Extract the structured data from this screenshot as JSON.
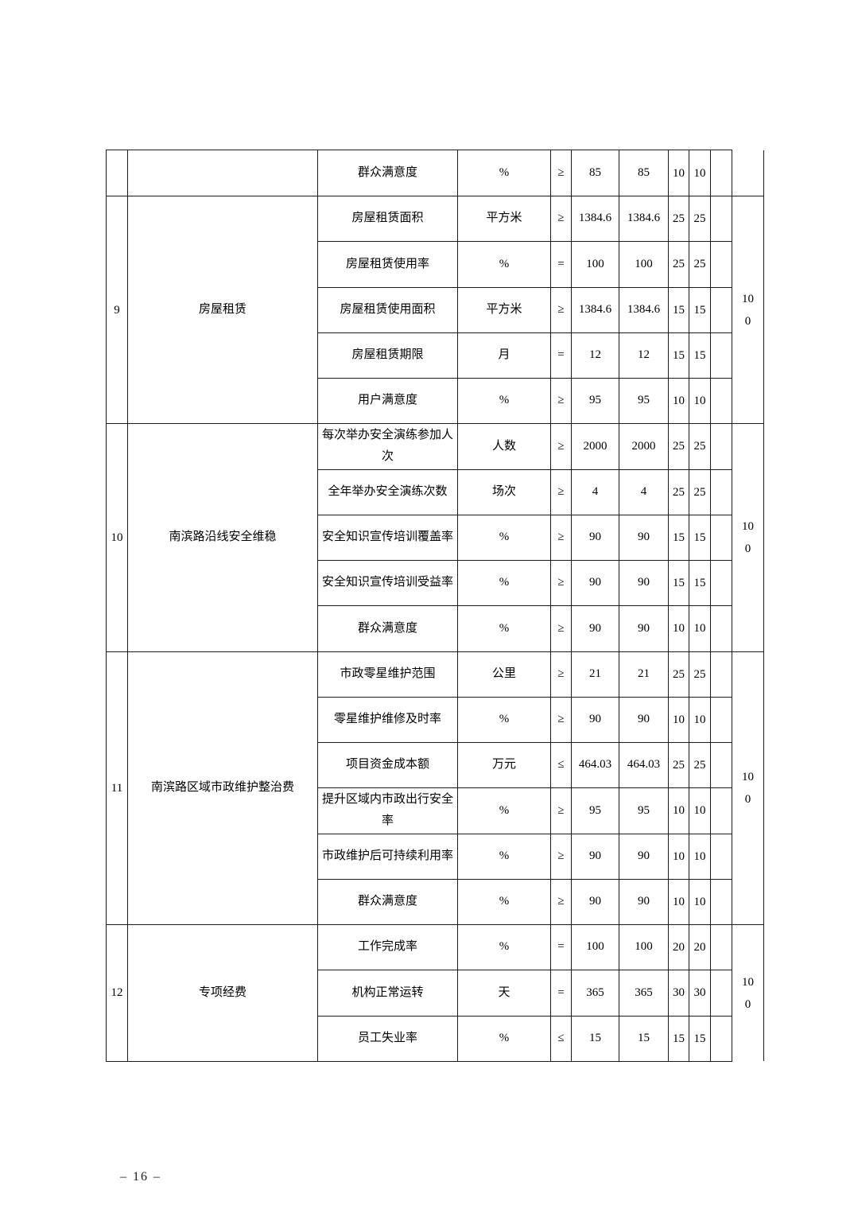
{
  "page": {
    "footer": "– 16 –"
  },
  "table": {
    "continuation_row": {
      "indicator": "群众满意度",
      "unit": "%",
      "comparator": "≥",
      "target": "85",
      "actual": "85",
      "score1": "10",
      "score2": "10",
      "total": ""
    },
    "sections": [
      {
        "no": "9",
        "name": "房屋租赁",
        "total": "100",
        "rows": [
          {
            "indicator": "房屋租赁面积",
            "unit": "平方米",
            "comparator": "≥",
            "target": "1384.6",
            "actual": "1384.6",
            "score1": "25",
            "score2": "25"
          },
          {
            "indicator": "房屋租赁使用率",
            "unit": "%",
            "comparator": "=",
            "target": "100",
            "actual": "100",
            "score1": "25",
            "score2": "25"
          },
          {
            "indicator": "房屋租赁使用面积",
            "unit": "平方米",
            "comparator": "≥",
            "target": "1384.6",
            "actual": "1384.6",
            "score1": "15",
            "score2": "15"
          },
          {
            "indicator": "房屋租赁期限",
            "unit": "月",
            "comparator": "=",
            "target": "12",
            "actual": "12",
            "score1": "15",
            "score2": "15"
          },
          {
            "indicator": "用户满意度",
            "unit": "%",
            "comparator": "≥",
            "target": "95",
            "actual": "95",
            "score1": "10",
            "score2": "10"
          }
        ]
      },
      {
        "no": "10",
        "name": "南滨路沿线安全维稳",
        "total": "100",
        "rows": [
          {
            "indicator": "每次举办安全演练参加人次",
            "unit": "人数",
            "comparator": "≥",
            "target": "2000",
            "actual": "2000",
            "score1": "25",
            "score2": "25"
          },
          {
            "indicator": "全年举办安全演练次数",
            "unit": "场次",
            "comparator": "≥",
            "target": "4",
            "actual": "4",
            "score1": "25",
            "score2": "25"
          },
          {
            "indicator": "安全知识宣传培训覆盖率",
            "unit": "%",
            "comparator": "≥",
            "target": "90",
            "actual": "90",
            "score1": "15",
            "score2": "15"
          },
          {
            "indicator": "安全知识宣传培训受益率",
            "unit": "%",
            "comparator": "≥",
            "target": "90",
            "actual": "90",
            "score1": "15",
            "score2": "15"
          },
          {
            "indicator": "群众满意度",
            "unit": "%",
            "comparator": "≥",
            "target": "90",
            "actual": "90",
            "score1": "10",
            "score2": "10"
          }
        ]
      },
      {
        "no": "11",
        "name": "南滨路区域市政维护整治费",
        "total": "100",
        "rows": [
          {
            "indicator": "市政零星维护范围",
            "unit": "公里",
            "comparator": "≥",
            "target": "21",
            "actual": "21",
            "score1": "25",
            "score2": "25"
          },
          {
            "indicator": "零星维护维修及时率",
            "unit": "%",
            "comparator": "≥",
            "target": "90",
            "actual": "90",
            "score1": "10",
            "score2": "10"
          },
          {
            "indicator": "项目资金成本额",
            "unit": "万元",
            "comparator": "≤",
            "target": "464.03",
            "actual": "464.03",
            "score1": "25",
            "score2": "25"
          },
          {
            "indicator": "提升区域内市政出行安全率",
            "unit": "%",
            "comparator": "≥",
            "target": "95",
            "actual": "95",
            "score1": "10",
            "score2": "10"
          },
          {
            "indicator": "市政维护后可持续利用率",
            "unit": "%",
            "comparator": "≥",
            "target": "90",
            "actual": "90",
            "score1": "10",
            "score2": "10"
          },
          {
            "indicator": "群众满意度",
            "unit": "%",
            "comparator": "≥",
            "target": "90",
            "actual": "90",
            "score1": "10",
            "score2": "10"
          }
        ]
      },
      {
        "no": "12",
        "name": "专项经费",
        "total": "100",
        "rows": [
          {
            "indicator": "工作完成率",
            "unit": "%",
            "comparator": "=",
            "target": "100",
            "actual": "100",
            "score1": "20",
            "score2": "20"
          },
          {
            "indicator": "机构正常运转",
            "unit": "天",
            "comparator": "=",
            "target": "365",
            "actual": "365",
            "score1": "30",
            "score2": "30"
          },
          {
            "indicator": "员工失业率",
            "unit": "%",
            "comparator": "≤",
            "target": "15",
            "actual": "15",
            "score1": "15",
            "score2": "15"
          }
        ]
      }
    ]
  }
}
